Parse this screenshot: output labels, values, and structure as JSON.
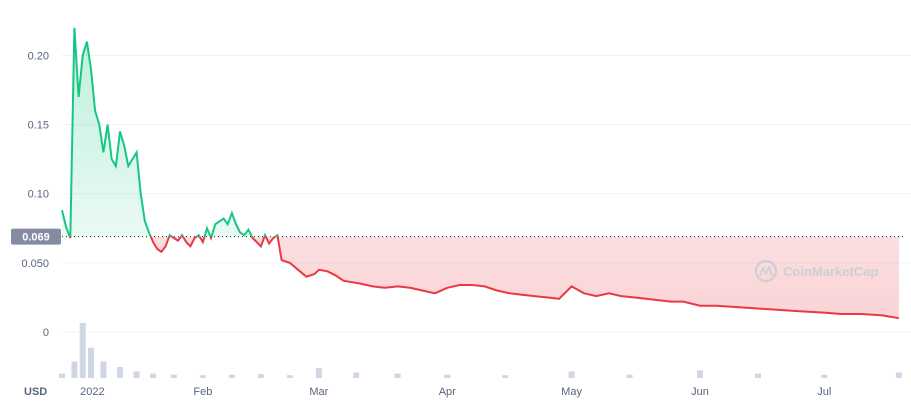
{
  "chart_data": {
    "type": "area",
    "unit": "USD",
    "watermark": "CoinMarketCap",
    "current_price": "0.069",
    "reference_value": 0.069,
    "yticks": [
      {
        "value": 0,
        "label": "0"
      },
      {
        "value": 0.05,
        "label": "0.050"
      },
      {
        "value": 0.1,
        "label": "0.10"
      },
      {
        "value": 0.15,
        "label": "0.15"
      },
      {
        "value": 0.2,
        "label": "0.20"
      }
    ],
    "xticks": [
      {
        "date": "2022-01-01",
        "label": "2022"
      },
      {
        "date": "2022-02-01",
        "label": "Feb"
      },
      {
        "date": "2022-03-01",
        "label": "Mar"
      },
      {
        "date": "2022-04-01",
        "label": "Apr"
      },
      {
        "date": "2022-05-01",
        "label": "May"
      },
      {
        "date": "2022-06-01",
        "label": "Jun"
      },
      {
        "date": "2022-07-01",
        "label": "Jul"
      }
    ],
    "xrange": [
      "2021-12-29",
      "2022-07-20"
    ],
    "ylim": [
      0,
      0.23
    ],
    "colors": {
      "up": "#16c784",
      "down": "#ea3943",
      "volume": "#cfd6e4",
      "grid": "#eff2f5",
      "label_bg": "#858ca2"
    },
    "series": [
      {
        "dates": [
          "2021-12-29",
          "2021-12-30",
          "2021-12-31",
          "2022-01-01",
          "2022-01-02",
          "2022-01-03",
          "2022-01-04",
          "2022-01-05",
          "2022-01-06",
          "2022-01-07",
          "2022-01-08",
          "2022-01-09",
          "2022-01-10",
          "2022-01-11",
          "2022-01-12",
          "2022-01-13",
          "2022-01-14",
          "2022-01-15",
          "2022-01-16",
          "2022-01-17",
          "2022-01-18",
          "2022-01-19",
          "2022-01-20",
          "2022-01-21",
          "2022-01-22",
          "2022-01-23",
          "2022-01-24",
          "2022-01-25",
          "2022-01-26",
          "2022-01-27",
          "2022-01-28",
          "2022-01-29",
          "2022-01-30",
          "2022-01-31",
          "2022-02-01",
          "2022-02-02",
          "2022-02-03",
          "2022-02-04",
          "2022-02-05",
          "2022-02-06",
          "2022-02-07",
          "2022-02-08",
          "2022-02-09",
          "2022-02-10",
          "2022-02-11",
          "2022-02-12",
          "2022-02-13",
          "2022-02-14",
          "2022-02-15",
          "2022-02-16",
          "2022-02-17",
          "2022-02-18",
          "2022-02-19",
          "2022-02-20",
          "2022-02-22",
          "2022-02-24",
          "2022-02-26",
          "2022-02-28",
          "2022-03-01",
          "2022-03-03",
          "2022-03-05",
          "2022-03-07",
          "2022-03-09",
          "2022-03-11",
          "2022-03-14",
          "2022-03-17",
          "2022-03-20",
          "2022-03-23",
          "2022-03-26",
          "2022-03-29",
          "2022-04-01",
          "2022-04-04",
          "2022-04-07",
          "2022-04-10",
          "2022-04-13",
          "2022-04-16",
          "2022-04-19",
          "2022-04-22",
          "2022-04-25",
          "2022-04-28",
          "2022-05-01",
          "2022-05-04",
          "2022-05-07",
          "2022-05-10",
          "2022-05-13",
          "2022-05-16",
          "2022-05-19",
          "2022-05-22",
          "2022-05-25",
          "2022-05-28",
          "2022-06-01",
          "2022-06-05",
          "2022-06-10",
          "2022-06-15",
          "2022-06-20",
          "2022-06-25",
          "2022-07-01",
          "2022-07-05",
          "2022-07-10",
          "2022-07-15",
          "2022-07-19"
        ],
        "values": [
          0.088,
          0.076,
          0.068,
          0.22,
          0.17,
          0.2,
          0.21,
          0.19,
          0.16,
          0.15,
          0.13,
          0.15,
          0.125,
          0.12,
          0.145,
          0.135,
          0.12,
          0.125,
          0.13,
          0.1,
          0.08,
          0.072,
          0.065,
          0.06,
          0.058,
          0.062,
          0.07,
          0.068,
          0.066,
          0.07,
          0.065,
          0.062,
          0.068,
          0.07,
          0.065,
          0.075,
          0.068,
          0.078,
          0.08,
          0.082,
          0.078,
          0.086,
          0.078,
          0.072,
          0.07,
          0.074,
          0.068,
          0.065,
          0.062,
          0.07,
          0.064,
          0.068,
          0.07,
          0.052,
          0.05,
          0.045,
          0.04,
          0.042,
          0.045,
          0.044,
          0.041,
          0.037,
          0.036,
          0.035,
          0.033,
          0.032,
          0.033,
          0.032,
          0.03,
          0.028,
          0.032,
          0.034,
          0.034,
          0.033,
          0.03,
          0.028,
          0.027,
          0.026,
          0.025,
          0.024,
          0.033,
          0.028,
          0.026,
          0.028,
          0.026,
          0.025,
          0.024,
          0.023,
          0.022,
          0.022,
          0.019,
          0.019,
          0.018,
          0.017,
          0.016,
          0.015,
          0.014,
          0.013,
          0.013,
          0.012,
          0.01
        ]
      }
    ],
    "volume": {
      "dates": [
        "2021-12-29",
        "2022-01-01",
        "2022-01-03",
        "2022-01-05",
        "2022-01-08",
        "2022-01-12",
        "2022-01-16",
        "2022-01-20",
        "2022-01-25",
        "2022-02-01",
        "2022-02-08",
        "2022-02-15",
        "2022-02-22",
        "2022-03-01",
        "2022-03-10",
        "2022-03-20",
        "2022-04-01",
        "2022-04-15",
        "2022-05-01",
        "2022-05-15",
        "2022-06-01",
        "2022-06-15",
        "2022-07-01",
        "2022-07-19"
      ],
      "values": [
        0.08,
        0.3,
        1.0,
        0.55,
        0.3,
        0.2,
        0.12,
        0.08,
        0.06,
        0.05,
        0.06,
        0.07,
        0.05,
        0.18,
        0.1,
        0.08,
        0.06,
        0.05,
        0.12,
        0.06,
        0.14,
        0.08,
        0.06,
        0.1
      ]
    }
  }
}
